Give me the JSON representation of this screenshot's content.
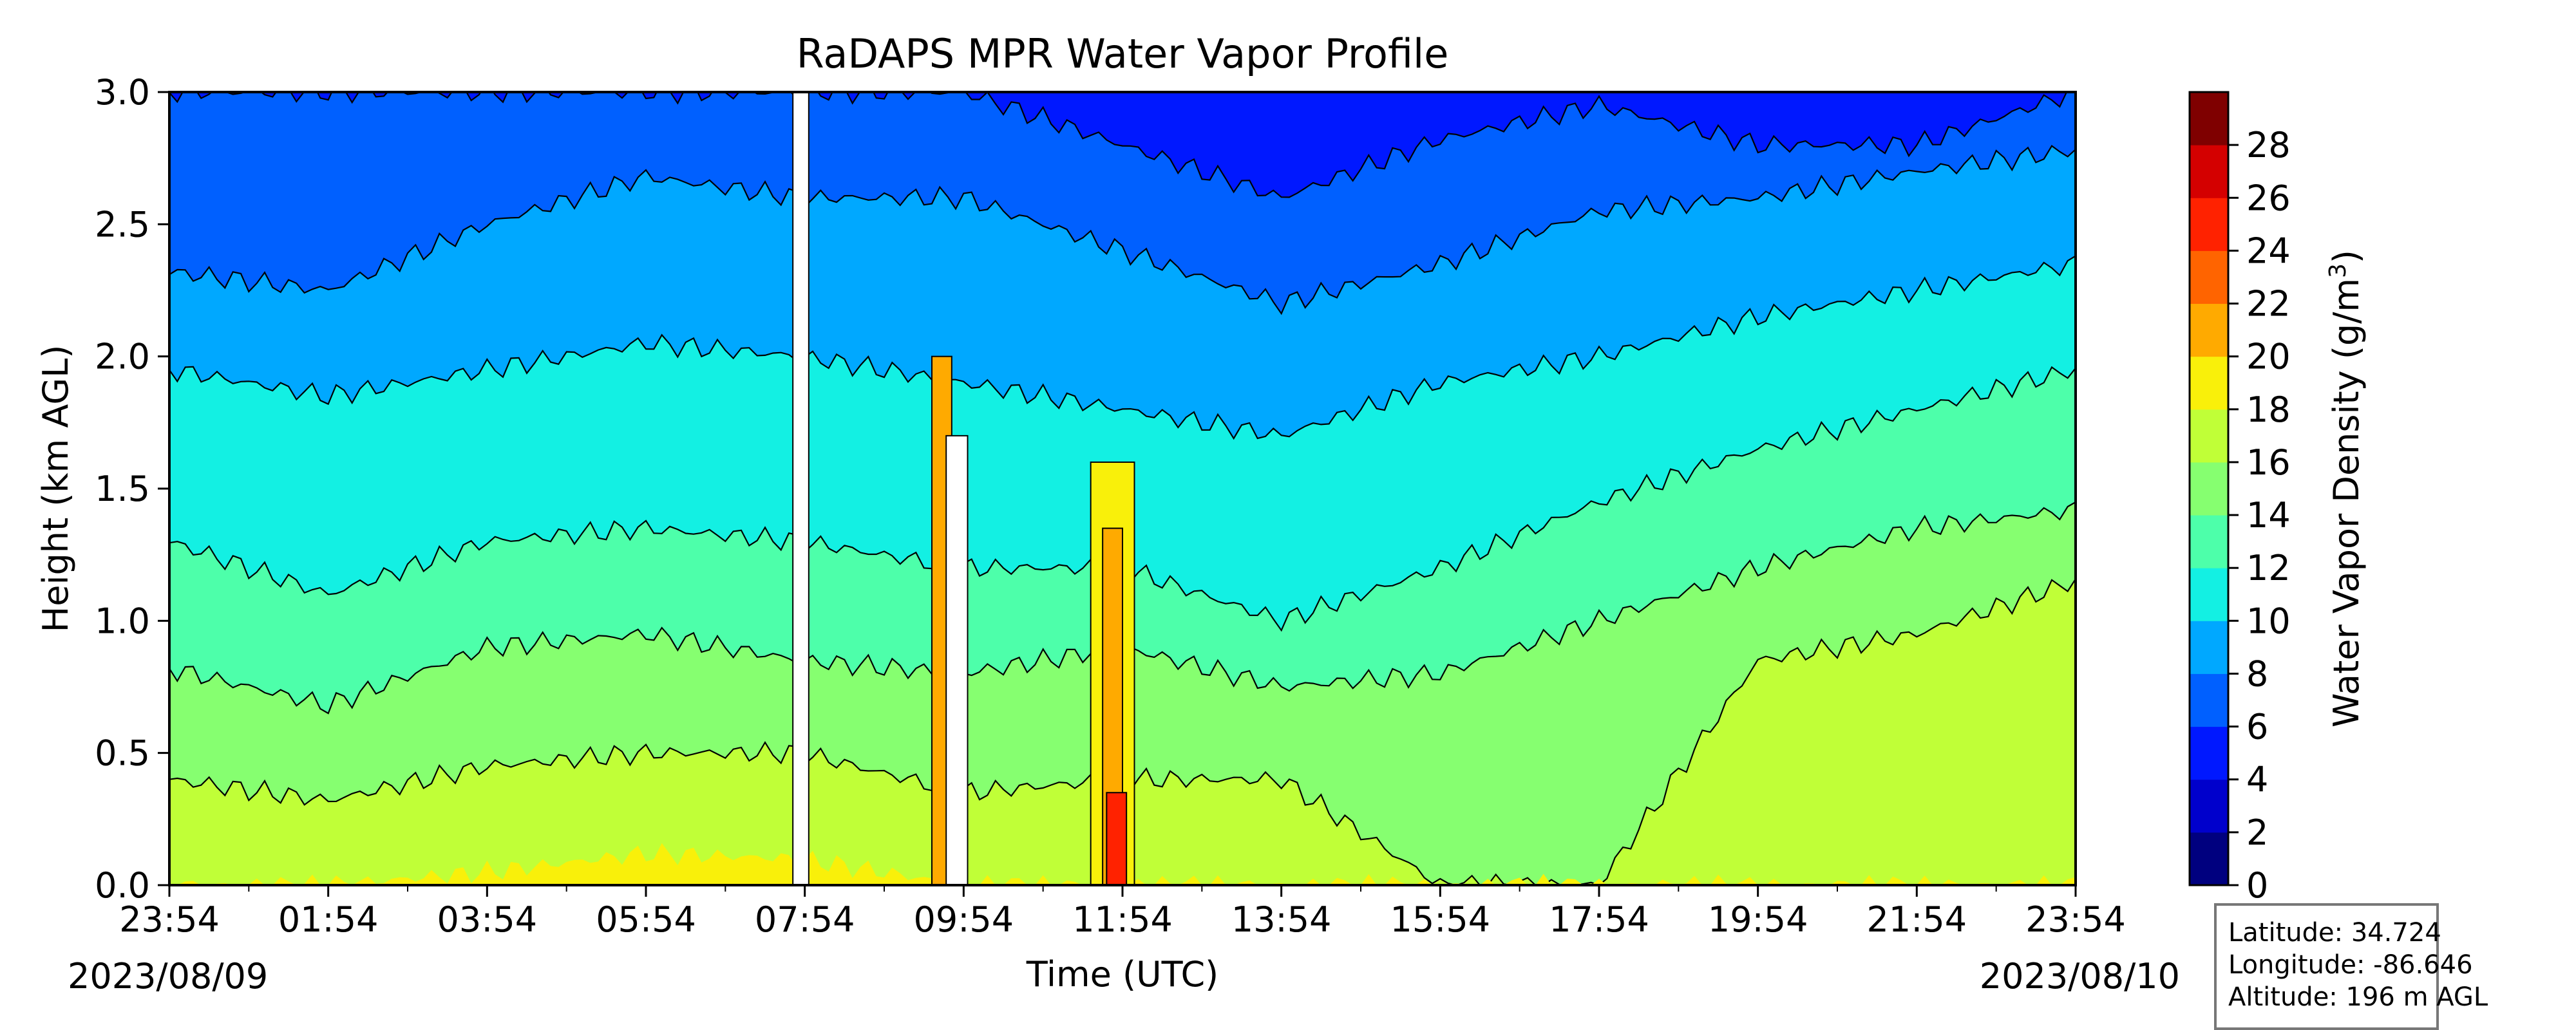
{
  "chart_data": {
    "type": "heatmap",
    "title": "RaDAPS MPR Water Vapor Profile",
    "xlabel": "Time (UTC)",
    "ylabel": "Height (km AGL)",
    "x_ticks": [
      "23:54",
      "01:54",
      "03:54",
      "05:54",
      "07:54",
      "09:54",
      "11:54",
      "13:54",
      "15:54",
      "17:54",
      "19:54",
      "21:54",
      "23:54"
    ],
    "y_ticks": [
      "0.0",
      "0.5",
      "1.0",
      "1.5",
      "2.0",
      "2.5",
      "3.0"
    ],
    "ylim": [
      0,
      3.0
    ],
    "start_date": "2023/08/09",
    "end_date": "2023/08/10",
    "colorbar": {
      "label_main": "Water Vapor Density (g/m",
      "label_sup": "3",
      "label_end": ")",
      "ticks": [
        "0",
        "2",
        "4",
        "6",
        "8",
        "10",
        "12",
        "14",
        "16",
        "18",
        "20",
        "22",
        "24",
        "26",
        "28"
      ],
      "colors": [
        "#00007f",
        "#0000cc",
        "#0018ff",
        "#0060ff",
        "#00a8ff",
        "#13f0e3",
        "#4dffaa",
        "#86ff70",
        "#c0ff37",
        "#f9f00a",
        "#ffaa00",
        "#ff6400",
        "#ff2200",
        "#d40000",
        "#7f0000"
      ]
    },
    "contour_boundaries_km_at_hour": {
      "hours": [
        0,
        2,
        4,
        6,
        7.95,
        10,
        12,
        14,
        16,
        18,
        20,
        22,
        24
      ],
      "rho_18": [
        0.0,
        0.0,
        0.05,
        0.12,
        0.1,
        0.0,
        0.0,
        0.0,
        0.0,
        0.0,
        0.0,
        0.0,
        0.0
      ],
      "rho_16": [
        0.4,
        0.32,
        0.45,
        0.5,
        0.5,
        0.35,
        0.4,
        0.4,
        0.0,
        0.0,
        0.85,
        0.95,
        1.15
      ],
      "rho_14": [
        0.82,
        0.68,
        0.9,
        0.95,
        0.85,
        0.8,
        0.9,
        0.75,
        0.8,
        1.0,
        1.2,
        1.35,
        1.42
      ],
      "rho_12": [
        1.3,
        1.1,
        1.3,
        1.35,
        1.3,
        1.2,
        1.2,
        1.0,
        1.2,
        1.45,
        1.65,
        1.8,
        1.95
      ],
      "rho_10": [
        1.95,
        1.85,
        1.95,
        2.05,
        2.0,
        1.9,
        1.8,
        1.7,
        1.9,
        2.0,
        2.15,
        2.25,
        2.35
      ],
      "rho_8": [
        2.32,
        2.25,
        2.5,
        2.68,
        2.6,
        2.6,
        2.4,
        2.2,
        2.35,
        2.55,
        2.6,
        2.7,
        2.78
      ],
      "rho_6": [
        3.0,
        3.0,
        3.0,
        3.0,
        3.0,
        3.0,
        2.8,
        2.6,
        2.82,
        2.95,
        2.8,
        2.8,
        3.0
      ]
    },
    "info_box": {
      "latitude": "Latitude: 34.724",
      "longitude": "Longitude: -86.646",
      "altitude": "Altitude: 196 m AGL"
    }
  }
}
